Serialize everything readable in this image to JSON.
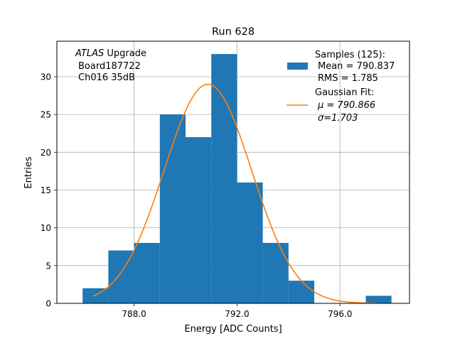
{
  "chart_data": {
    "type": "bar",
    "title": "Run 628",
    "xlabel": "Energy [ADC Counts]",
    "ylabel": "Entries",
    "xlim": [
      785.0,
      798.7
    ],
    "ylim": [
      0,
      34.7
    ],
    "xticks": [
      788.0,
      792.0,
      796.0
    ],
    "xtick_labels": [
      "788.0",
      "792.0",
      "796.0"
    ],
    "yticks": [
      0,
      5,
      10,
      15,
      20,
      25,
      30
    ],
    "ytick_labels": [
      "0",
      "5",
      "10",
      "15",
      "20",
      "25",
      "30"
    ],
    "grid": true,
    "bin_width": 1.0,
    "bins": [
      {
        "x0": 786.0,
        "x1": 787.0,
        "count": 2
      },
      {
        "x0": 787.0,
        "x1": 788.0,
        "count": 7
      },
      {
        "x0": 788.0,
        "x1": 789.0,
        "count": 8
      },
      {
        "x0": 789.0,
        "x1": 790.0,
        "count": 25
      },
      {
        "x0": 790.0,
        "x1": 791.0,
        "count": 22
      },
      {
        "x0": 791.0,
        "x1": 792.0,
        "count": 33
      },
      {
        "x0": 792.0,
        "x1": 793.0,
        "count": 16
      },
      {
        "x0": 793.0,
        "x1": 794.0,
        "count": 8
      },
      {
        "x0": 794.0,
        "x1": 795.0,
        "count": 3
      },
      {
        "x0": 797.0,
        "x1": 798.0,
        "count": 1
      }
    ],
    "fit": {
      "type": "gaussian",
      "mu": 790.866,
      "sigma": 1.703,
      "amplitude": 29.0,
      "x_range": [
        786.4,
        797.4
      ]
    },
    "colors": {
      "bars": "#1f77b4",
      "fit": "#ff7f0e",
      "grid": "#b0b0b0"
    },
    "annotation": {
      "line1_italic": "ATLAS",
      "line1_rest": " Upgrade",
      "line2": "Board187722",
      "line3": "Ch016 35dB"
    },
    "legend": {
      "location": "top-right",
      "samples_title": "Samples (125):",
      "samples_mean": "Mean = 790.837",
      "samples_rms": "RMS = 1.785",
      "fit_title": "Gaussian Fit:",
      "fit_mu": "μ = 790.866",
      "fit_sigma": "σ=1.703"
    }
  }
}
